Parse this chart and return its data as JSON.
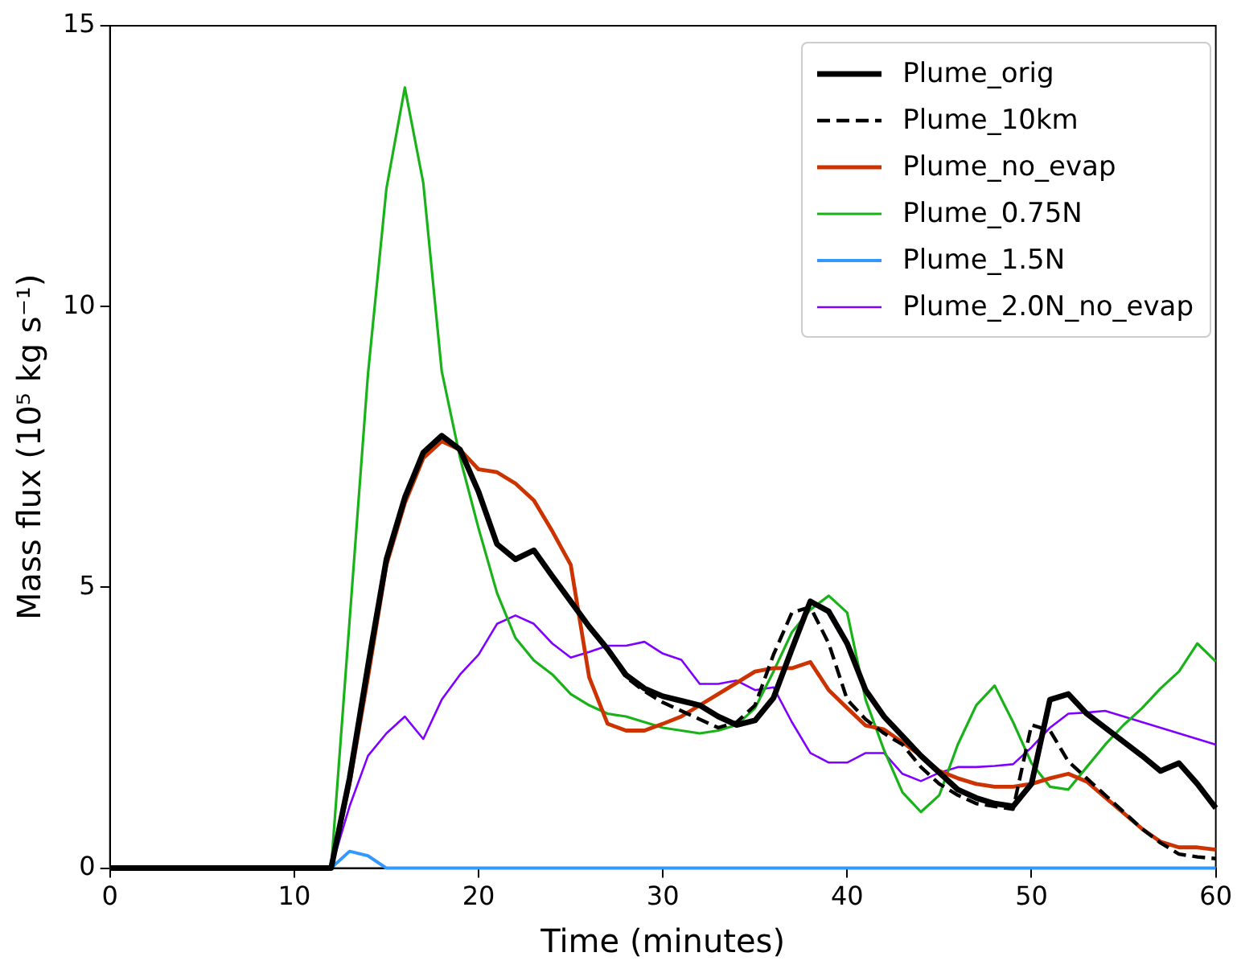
{
  "chart_data": {
    "type": "line",
    "xlabel": "Time (minutes)",
    "ylabel": "Mass flux (10⁵ kg s⁻¹)",
    "x": [
      0,
      12,
      13,
      14,
      15,
      16,
      17,
      18,
      19,
      20,
      21,
      22,
      23,
      24,
      25,
      26,
      27,
      28,
      29,
      30,
      31,
      32,
      33,
      34,
      35,
      36,
      37,
      38,
      39,
      40,
      41,
      42,
      43,
      44,
      45,
      46,
      47,
      48,
      49,
      50,
      51,
      52,
      53,
      54,
      55,
      56,
      57,
      58,
      59,
      60
    ],
    "series": [
      {
        "name": "Plume_orig",
        "color": "#000000",
        "values": [
          0,
          0,
          1.6,
          3.6,
          5.5,
          6.6,
          7.4,
          7.7,
          7.45,
          6.7,
          5.77,
          5.5,
          5.66,
          5.2,
          4.75,
          4.3,
          3.9,
          3.44,
          3.2,
          3.06,
          2.98,
          2.9,
          2.7,
          2.55,
          2.63,
          3.03,
          3.9,
          4.75,
          4.57,
          4.0,
          3.17,
          2.7,
          2.35,
          2.0,
          1.7,
          1.4,
          1.25,
          1.15,
          1.1,
          1.5,
          3.0,
          3.1,
          2.75,
          2.5,
          2.25,
          2.0,
          1.73,
          1.87,
          1.5,
          1.07
        ]
      },
      {
        "name": "Plume_10km",
        "color": "#000000",
        "line_style": "dashed",
        "values": [
          0,
          0,
          1.6,
          3.6,
          5.5,
          6.6,
          7.4,
          7.7,
          7.45,
          6.7,
          5.77,
          5.5,
          5.66,
          5.2,
          4.75,
          4.3,
          3.9,
          3.4,
          3.15,
          2.95,
          2.8,
          2.65,
          2.5,
          2.6,
          2.9,
          3.8,
          4.55,
          4.65,
          4.0,
          3.0,
          2.65,
          2.4,
          2.2,
          1.8,
          1.5,
          1.3,
          1.15,
          1.1,
          1.05,
          2.55,
          2.45,
          1.9,
          1.6,
          1.3,
          1.0,
          0.7,
          0.45,
          0.25,
          0.2,
          0.17
        ]
      },
      {
        "name": "Plume_no_evap",
        "color": "#cc3300",
        "values": [
          0,
          0,
          1.5,
          3.4,
          5.4,
          6.5,
          7.3,
          7.6,
          7.45,
          7.1,
          7.05,
          6.85,
          6.55,
          6.0,
          5.4,
          3.4,
          2.57,
          2.45,
          2.45,
          2.57,
          2.7,
          2.9,
          3.1,
          3.3,
          3.5,
          3.56,
          3.56,
          3.67,
          3.17,
          2.85,
          2.54,
          2.47,
          2.24,
          2.0,
          1.73,
          1.6,
          1.5,
          1.45,
          1.45,
          1.5,
          1.6,
          1.68,
          1.54,
          1.26,
          0.98,
          0.7,
          0.47,
          0.37,
          0.37,
          0.33
        ]
      },
      {
        "name": "Plume_0.75N",
        "color": "#19b219",
        "values": [
          0,
          0,
          4.4,
          8.8,
          12.1,
          13.9,
          12.2,
          8.85,
          7.3,
          6.05,
          4.9,
          4.1,
          3.7,
          3.45,
          3.1,
          2.9,
          2.75,
          2.7,
          2.6,
          2.5,
          2.45,
          2.4,
          2.45,
          2.55,
          2.85,
          3.5,
          4.2,
          4.6,
          4.85,
          4.55,
          3.0,
          2.1,
          1.35,
          1.0,
          1.3,
          2.2,
          2.9,
          3.25,
          2.6,
          1.87,
          1.45,
          1.4,
          1.8,
          2.2,
          2.55,
          2.85,
          3.2,
          3.5,
          4.0,
          3.68
        ]
      },
      {
        "name": "Plume_1.5N",
        "color": "#3399ff",
        "values": [
          0,
          0,
          0.3,
          0.22,
          0,
          0,
          0,
          0,
          0,
          0,
          0,
          0,
          0,
          0,
          0,
          0,
          0,
          0,
          0,
          0,
          0,
          0,
          0,
          0,
          0,
          0,
          0,
          0,
          0,
          0,
          0,
          0,
          0,
          0,
          0,
          0,
          0,
          0,
          0,
          0,
          0,
          0,
          0,
          0,
          0,
          0,
          0,
          0,
          0,
          0
        ]
      },
      {
        "name": "Plume_2.0N_no_evap",
        "color": "#7f00ff",
        "values": [
          0,
          0,
          1.1,
          2.0,
          2.4,
          2.7,
          2.3,
          3.0,
          3.45,
          3.8,
          4.35,
          4.5,
          4.35,
          4.0,
          3.75,
          3.85,
          3.96,
          3.96,
          4.03,
          3.82,
          3.71,
          3.28,
          3.28,
          3.34,
          3.17,
          3.22,
          2.6,
          2.05,
          1.88,
          1.88,
          2.05,
          2.05,
          1.68,
          1.55,
          1.7,
          1.8,
          1.8,
          1.82,
          1.85,
          2.15,
          2.5,
          2.75,
          2.77,
          2.8,
          2.7,
          2.6,
          2.5,
          2.4,
          2.3,
          2.2
        ]
      }
    ],
    "xlim": [
      0,
      60
    ],
    "xticks": [
      0,
      10,
      20,
      30,
      40,
      50,
      60
    ],
    "ylim": [
      0,
      15
    ],
    "yticks": [
      0,
      5,
      10,
      15
    ],
    "grid": false,
    "legend": "top right",
    "marker": "none"
  }
}
